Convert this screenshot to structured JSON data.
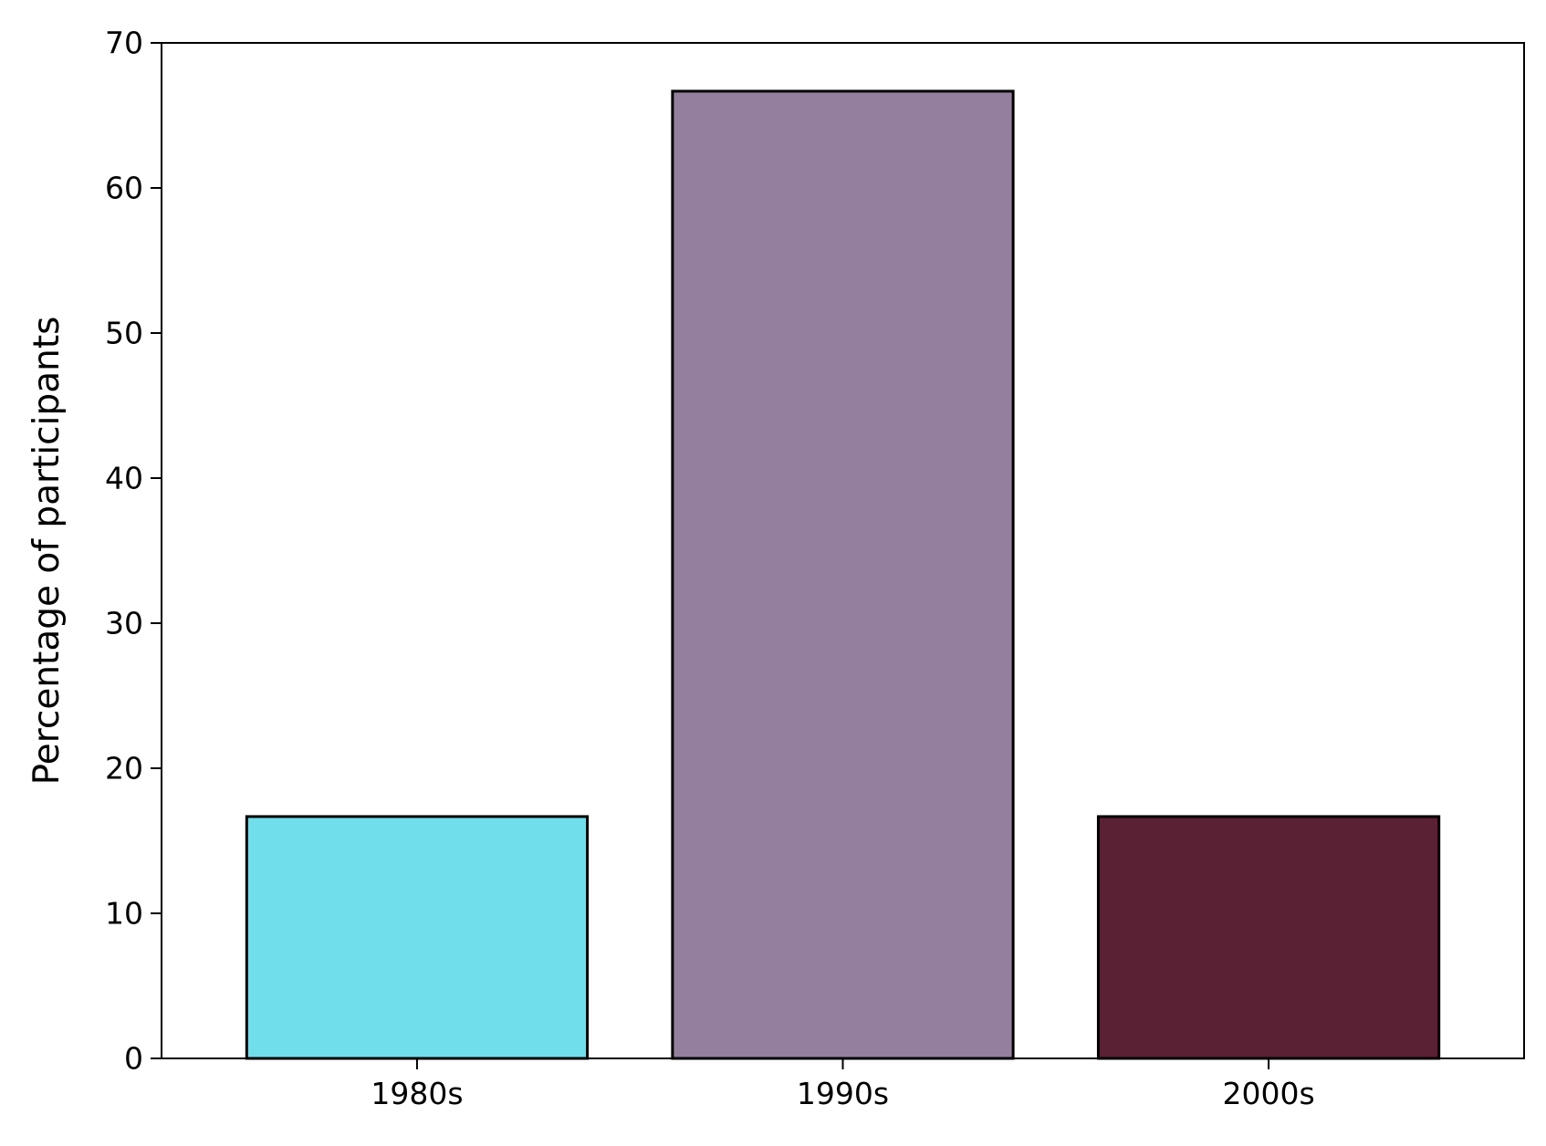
{
  "chart_data": {
    "type": "bar",
    "title": "",
    "xlabel": "",
    "ylabel": "Percentage of participants",
    "categories": [
      "1980s",
      "1990s",
      "2000s"
    ],
    "values": [
      16.67,
      66.67,
      16.67
    ],
    "colors": [
      "#70dfeb",
      "#94809e",
      "#5a2033"
    ],
    "edge_color": "#000000",
    "ylim": [
      0,
      70
    ],
    "yticks": [
      "0",
      "10",
      "20",
      "30",
      "40",
      "50",
      "60",
      "70"
    ],
    "grid": false,
    "legend": "none"
  }
}
